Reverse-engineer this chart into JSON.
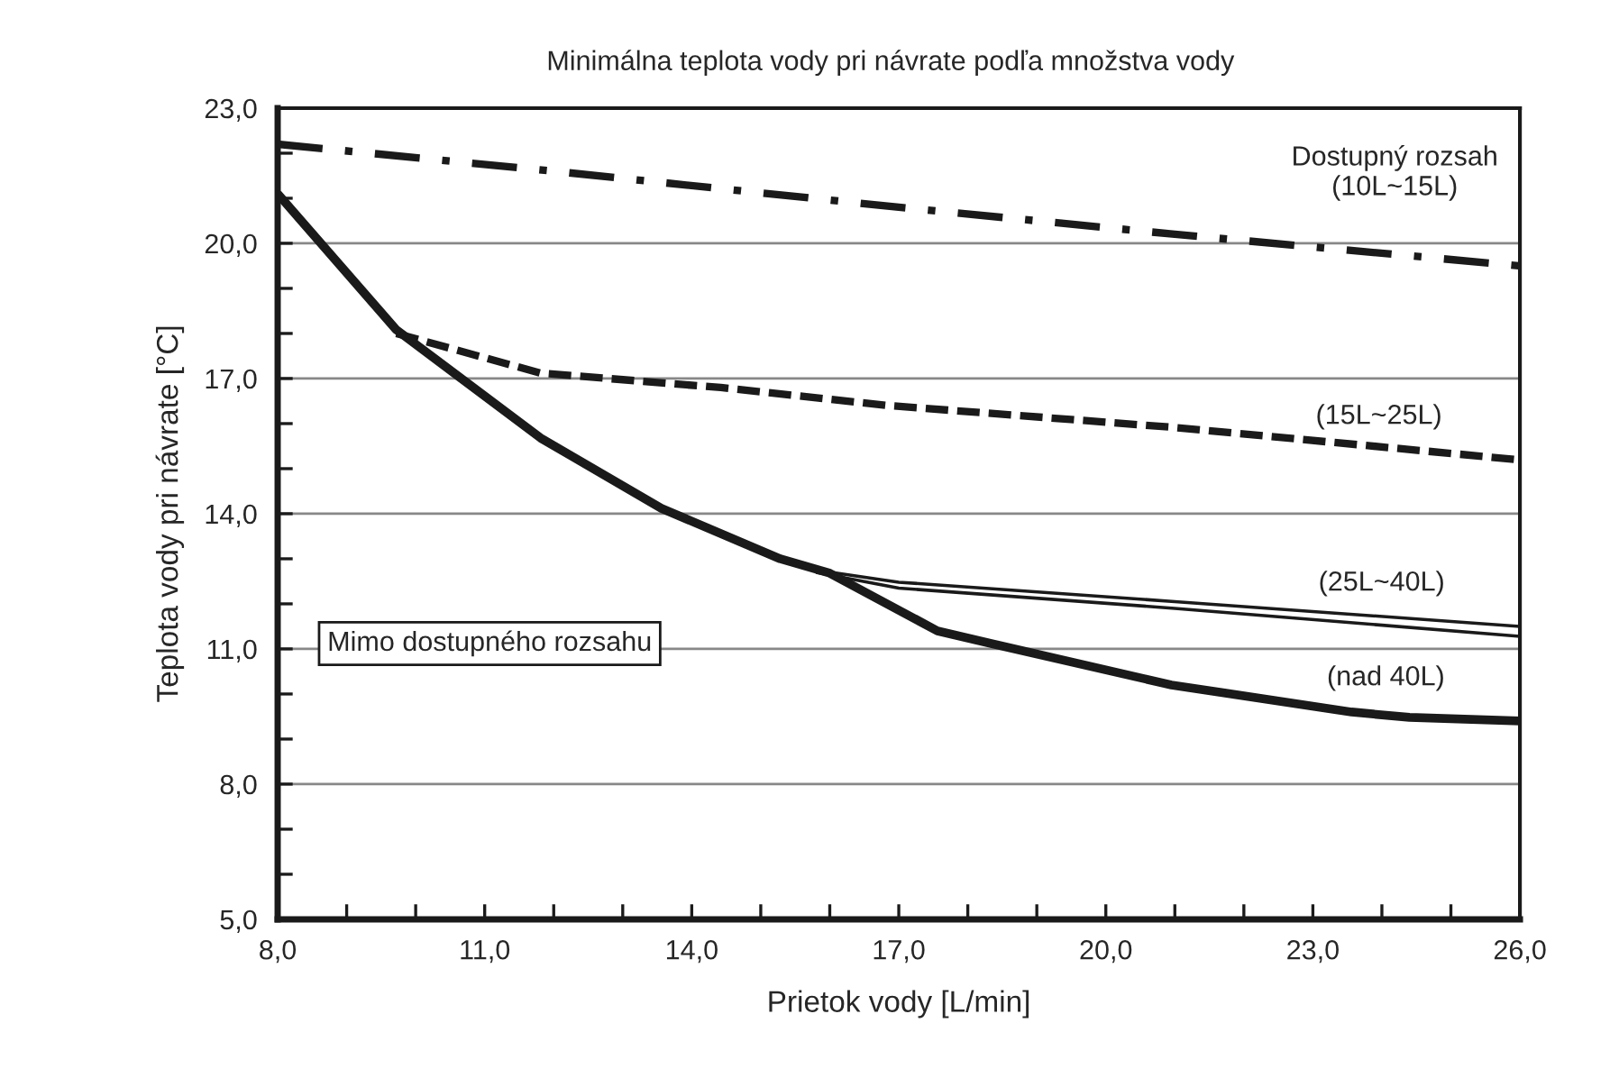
{
  "chart_data": {
    "type": "line",
    "title": "Minimálna teplota vody pri návrate podľa množstva vody",
    "xlabel": "Prietok vody [L/min]",
    "ylabel": "Teplota vody pri návrate [°C]",
    "series": [
      {
        "name": "Dostupný rozsah\n(10L~15L)",
        "color": "#1a1a1a",
        "line_style": "dashdot",
        "x": [
          8,
          12,
          17,
          21,
          26
        ],
        "values": [
          22.2,
          21.6,
          20.8,
          20.2,
          19.5
        ]
      },
      {
        "name": "(15L~25L)",
        "color": "#1a1a1a",
        "line_style": "dashed",
        "x": [
          9.72,
          11.81,
          14.42,
          16.85,
          20.95,
          25.96
        ],
        "values": [
          18.0,
          17.12,
          16.8,
          16.4,
          15.92,
          15.2
        ]
      },
      {
        "name": "(25L~40L)",
        "color": "#1a1a1a",
        "line_style": "solid",
        "x": [
          15.8,
          17,
          21,
          26
        ],
        "values": [
          12.75,
          12.48,
          12.05,
          11.5
        ]
      },
      {
        "color": "#1a1a1a",
        "line_style": "solid",
        "x": [
          15.8,
          17,
          21,
          26
        ],
        "values": [
          12.7,
          12.35,
          11.9,
          11.28
        ]
      },
      {
        "name": "(nad 40L)",
        "color": "#1a1a1a",
        "line_style": "solid",
        "x": [
          8,
          9.72,
          11.81,
          13.56,
          15.28,
          16,
          17.56,
          18.34,
          20.95,
          23.56,
          24.4,
          26
        ],
        "values": [
          21.1,
          18.08,
          15.68,
          14.12,
          13.0,
          12.68,
          11.4,
          11.12,
          10.2,
          9.6,
          9.48,
          9.4
        ]
      }
    ],
    "xlim": [
      8,
      26
    ],
    "ylim": [
      5,
      23
    ],
    "xticks": [
      {
        "value": 8,
        "label": "8,0"
      },
      {
        "value": 9,
        "label": null
      },
      {
        "value": 10,
        "label": null
      },
      {
        "value": 11,
        "label": "11,0"
      },
      {
        "value": 12,
        "label": null
      },
      {
        "value": 13,
        "label": null
      },
      {
        "value": 14,
        "label": "14,0"
      },
      {
        "value": 15,
        "label": null
      },
      {
        "value": 16,
        "label": null
      },
      {
        "value": 17,
        "label": "17,0"
      },
      {
        "value": 18,
        "label": null
      },
      {
        "value": 19,
        "label": null
      },
      {
        "value": 20,
        "label": "20,0"
      },
      {
        "value": 21,
        "label": null
      },
      {
        "value": 22,
        "label": null
      },
      {
        "value": 23,
        "label": "23,0"
      },
      {
        "value": 24,
        "label": null
      },
      {
        "value": 25,
        "label": null
      },
      {
        "value": 26,
        "label": "26,0"
      }
    ],
    "yticks": [
      {
        "value": 5,
        "label": "5,0"
      },
      {
        "value": 6,
        "label": null
      },
      {
        "value": 7,
        "label": null
      },
      {
        "value": 8,
        "label": "8,0"
      },
      {
        "value": 9,
        "label": null
      },
      {
        "value": 10,
        "label": null
      },
      {
        "value": 11,
        "label": "11,0"
      },
      {
        "value": 12,
        "label": null
      },
      {
        "value": 13,
        "label": null
      },
      {
        "value": 14,
        "label": "14,0"
      },
      {
        "value": 15,
        "label": null
      },
      {
        "value": 16,
        "label": null
      },
      {
        "value": 17,
        "label": "17,0"
      },
      {
        "value": 18,
        "label": null
      },
      {
        "value": 19,
        "label": null
      },
      {
        "value": 20,
        "label": "20,0"
      },
      {
        "value": 21,
        "label": null
      },
      {
        "value": 22,
        "label": null
      },
      {
        "value": 23,
        "label": "23,0"
      }
    ],
    "grid": "y",
    "legend": false,
    "annotations": [
      "Mimo dostupného rozsahu"
    ]
  }
}
